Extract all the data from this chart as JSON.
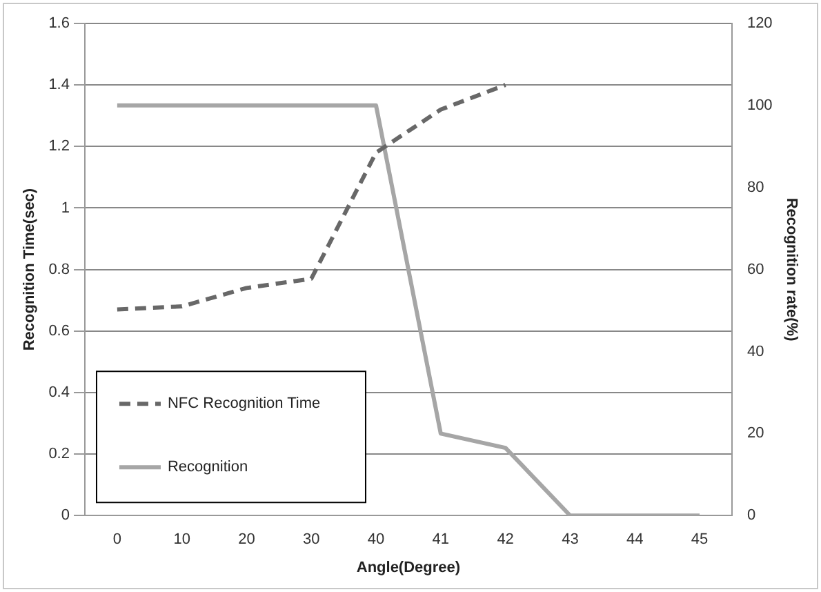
{
  "chart_data": {
    "type": "line",
    "xlabel": "Angle(Degree)",
    "ylabel": "Recognition Time(sec)",
    "y2label": "Recognition rate(%)",
    "categories": [
      "0",
      "10",
      "20",
      "30",
      "40",
      "41",
      "42",
      "43",
      "44",
      "45"
    ],
    "series": [
      {
        "name": "NFC Recognition Time",
        "color": "#686868",
        "line_style": "dashed",
        "values": [
          0.67,
          0.68,
          0.74,
          0.77,
          1.18,
          1.32,
          1.4,
          null,
          null,
          null
        ]
      },
      {
        "name": "Recognition",
        "color": "#a6a6a6",
        "line_style": "solid",
        "axis": "y2",
        "values": [
          100,
          100,
          100,
          100,
          100,
          20,
          16.5,
          0,
          0,
          0
        ]
      }
    ],
    "ylim": [
      0,
      1.6
    ],
    "yticks": [
      0,
      0.2,
      0.4,
      0.6,
      0.8,
      1,
      1.2,
      1.4,
      1.6
    ],
    "y2lim": [
      0,
      120
    ],
    "y2ticks": [
      0,
      20,
      40,
      60,
      80,
      100,
      120
    ],
    "grid": "y",
    "legend": "bottom left",
    "marker": "none"
  }
}
